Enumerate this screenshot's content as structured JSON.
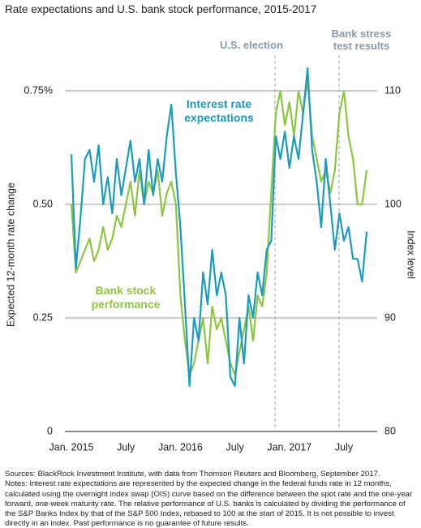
{
  "chart_data": {
    "type": "line",
    "title": "Rate expectations and U.S. bank stock performance, 2015-2017",
    "categories": [
      "Jan. 2015",
      null,
      null,
      null,
      null,
      null,
      null,
      null,
      null,
      null,
      null,
      null,
      "July",
      null,
      null,
      null,
      null,
      null,
      null,
      null,
      null,
      null,
      null,
      null,
      "Jan. 2016",
      null,
      null,
      null,
      null,
      null,
      null,
      null,
      null,
      null,
      null,
      null,
      "July",
      null,
      null,
      null,
      null,
      null,
      null,
      null,
      null,
      null,
      null,
      null,
      "Jan. 2017",
      null,
      null,
      null,
      null,
      null,
      null,
      null,
      null,
      null,
      null,
      null,
      "July",
      null,
      null,
      null,
      null,
      null
    ],
    "series": [
      {
        "name": "Interest rate expectations",
        "color": "#1a9bbf",
        "axis": "y",
        "values": [
          0.61,
          0.36,
          0.47,
          0.6,
          0.62,
          0.55,
          0.63,
          0.5,
          0.56,
          0.48,
          0.6,
          0.52,
          0.58,
          0.64,
          0.55,
          0.6,
          0.5,
          0.62,
          0.52,
          0.6,
          0.55,
          0.65,
          0.72,
          0.57,
          0.45,
          0.28,
          0.1,
          0.25,
          0.2,
          0.35,
          0.28,
          0.4,
          0.3,
          0.35,
          0.3,
          0.12,
          0.1,
          0.25,
          0.15,
          0.3,
          0.25,
          0.35,
          0.3,
          0.4,
          0.42,
          0.65,
          0.6,
          0.66,
          0.58,
          0.65,
          0.6,
          0.7,
          0.8,
          0.62,
          0.55,
          0.45,
          0.6,
          0.5,
          0.4,
          0.48,
          0.42,
          0.45,
          0.38,
          0.38,
          0.33,
          0.44
        ]
      },
      {
        "name": "Bank stock performance",
        "color": "#8cc63f",
        "axis": "y2",
        "values": [
          100,
          94,
          95,
          96,
          97,
          95,
          96,
          98,
          96,
          97,
          99,
          98,
          100,
          102,
          99,
          103,
          100,
          102,
          101,
          103,
          99,
          101,
          102,
          100,
          92,
          88,
          85,
          86,
          88,
          90,
          86,
          91,
          89,
          90,
          88,
          86,
          85,
          87,
          89,
          91,
          88,
          92,
          91,
          94,
          101,
          108,
          110,
          107,
          109,
          106,
          110,
          108,
          111,
          106,
          104,
          102,
          103,
          101,
          103,
          108,
          110,
          106,
          104,
          100,
          100,
          103
        ]
      }
    ],
    "ylim": [
      0,
      0.85
    ],
    "yticks": [
      0,
      0.25,
      {
        "value": 0.5,
        "label": "0.50"
      },
      {
        "value": 0.75,
        "label": "0.75%"
      }
    ],
    "y2lim": [
      80,
      114
    ],
    "y2ticks": [
      80,
      90,
      100,
      110
    ],
    "ylabel": "Expected 12-month rate change",
    "y2label": "Index level",
    "grid": true,
    "annotations": [
      "U.S. election",
      "Bank stress test results"
    ],
    "sources": "Sources: BlackRock Investment Institute, with data from Thomson Reuters and Bloomberg, September 2017.",
    "notes": "Notes: Interest rate expectations are represented by the expected change in the federal funds rate in 12 months, calculated using the overnight index swap (OIS) curve based on the difference between the spot rate and the one-year forward, one-week maturity rate. The relative performance of U.S. banks is calculated by dividing the performance of the S&P Banks Index by that of the S&P 500 Index, rebased to 100 at the start of 2015. It is not possible to invest directly in an index. Past performance is no guarantee of future results."
  }
}
